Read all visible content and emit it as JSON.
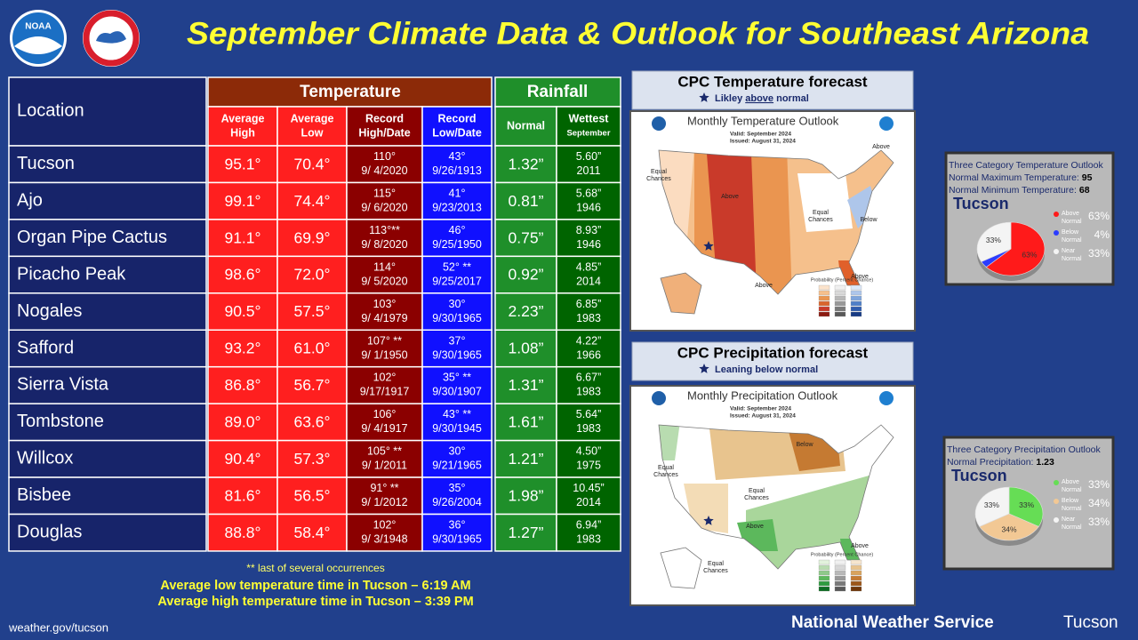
{
  "header": {
    "title": "September Climate Data & Outlook for Southeast Arizona",
    "logo": "NOAA"
  },
  "table": {
    "location_header": "Location",
    "groups": [
      "Temperature",
      "Rainfall"
    ],
    "columns": [
      [
        "Average",
        "High"
      ],
      [
        "Average",
        "Low"
      ],
      [
        "Record",
        "High/Date"
      ],
      [
        "Record",
        "Low/Date"
      ],
      [
        "Normal"
      ],
      [
        "Wettest",
        "September"
      ]
    ],
    "rows": [
      {
        "location": "Tucson",
        "avg_high": "95.1°",
        "avg_low": "70.4°",
        "record_high": [
          "110°",
          "9/ 4/2020"
        ],
        "record_low": [
          "43°",
          "9/26/1913"
        ],
        "normal": "1.32”",
        "wettest": [
          "5.60”",
          "2011"
        ]
      },
      {
        "location": "Ajo",
        "avg_high": "99.1°",
        "avg_low": "74.4°",
        "record_high": [
          "115°",
          "9/ 6/2020"
        ],
        "record_low": [
          "41°",
          "9/23/2013"
        ],
        "normal": "0.81”",
        "wettest": [
          "5.68”",
          "1946"
        ]
      },
      {
        "location": "Organ Pipe Cactus",
        "avg_high": "91.1°",
        "avg_low": "69.9°",
        "record_high": [
          "113°**",
          "9/ 8/2020"
        ],
        "record_low": [
          "46°",
          "9/25/1950"
        ],
        "normal": "0.75”",
        "wettest": [
          "8.93”",
          "1946"
        ]
      },
      {
        "location": "Picacho Peak",
        "avg_high": "98.6°",
        "avg_low": "72.0°",
        "record_high": [
          "114°",
          "9/ 5/2020"
        ],
        "record_low": [
          "52° **",
          "9/25/2017"
        ],
        "normal": "0.92”",
        "wettest": [
          "4.85”",
          "2014"
        ]
      },
      {
        "location": "Nogales",
        "avg_high": "90.5°",
        "avg_low": "57.5°",
        "record_high": [
          "103°",
          "9/ 4/1979"
        ],
        "record_low": [
          "30°",
          "9/30/1965"
        ],
        "normal": "2.23”",
        "wettest": [
          "6.85”",
          "1983"
        ]
      },
      {
        "location": "Safford",
        "avg_high": "93.2°",
        "avg_low": "61.0°",
        "record_high": [
          "107° **",
          "9/ 1/1950"
        ],
        "record_low": [
          "37°",
          "9/30/1965"
        ],
        "normal": "1.08”",
        "wettest": [
          "4.22”",
          "1966"
        ]
      },
      {
        "location": "Sierra Vista",
        "avg_high": "86.8°",
        "avg_low": "56.7°",
        "record_high": [
          "102°",
          "9/17/1917"
        ],
        "record_low": [
          "35° **",
          "9/30/1907"
        ],
        "normal": "1.31”",
        "wettest": [
          "6.67”",
          "1983"
        ]
      },
      {
        "location": "Tombstone",
        "avg_high": "89.0°",
        "avg_low": "63.6°",
        "record_high": [
          "106°",
          "9/ 4/1917"
        ],
        "record_low": [
          "43° **",
          "9/30/1945"
        ],
        "normal": "1.61”",
        "wettest": [
          "5.64”",
          "1983"
        ]
      },
      {
        "location": "Willcox",
        "avg_high": "90.4°",
        "avg_low": "57.3°",
        "record_high": [
          "105° **",
          "9/ 1/2011"
        ],
        "record_low": [
          "30°",
          "9/21/1965"
        ],
        "normal": "1.21”",
        "wettest": [
          "4.50”",
          "1975"
        ]
      },
      {
        "location": "Bisbee",
        "avg_high": "81.6°",
        "avg_low": "56.5°",
        "record_high": [
          "91° **",
          "9/ 1/2012"
        ],
        "record_low": [
          "35°",
          "9/26/2004"
        ],
        "normal": "1.98”",
        "wettest": [
          "10.45”",
          "2014"
        ]
      },
      {
        "location": "Douglas",
        "avg_high": "88.8°",
        "avg_low": "58.4°",
        "record_high": [
          "102°",
          "9/ 3/1948"
        ],
        "record_low": [
          "36°",
          "9/30/1965"
        ],
        "normal": "1.27”",
        "wettest": [
          "6.94”",
          "1983"
        ]
      }
    ]
  },
  "notes": [
    "** last of several occurrences",
    "Average low temperature time in Tucson – 6:19 AM",
    "Average high temperature time in Tucson – 3:39 PM"
  ],
  "footer": {
    "url": "weather.gov/tucson",
    "agency": "National Weather Service",
    "office": "Tucson"
  },
  "temperature_forecast": {
    "title": "CPC Temperature forecast",
    "subtitle": [
      "Likley ",
      "above",
      " normal"
    ],
    "map": {
      "title": "Monthly Temperature Outlook",
      "valid": "Valid:  September 2024",
      "issued": "Issued:  August 31, 2024",
      "legend": "Probability (Percent Chance)",
      "labels": [
        [
          "Above"
        ],
        [
          "Equal",
          "Chances"
        ],
        [
          "Above"
        ],
        [
          "Equal",
          "Chances"
        ],
        [
          "Below"
        ],
        [
          "Above"
        ],
        [
          "Above"
        ]
      ]
    }
  },
  "precipitation_forecast": {
    "title": "CPC Precipitation forecast",
    "subtitle": [
      "Leaning below normal"
    ],
    "map": {
      "title": "Monthly Precipitation Outlook",
      "valid": "Valid:  September 2024",
      "issued": "Issued:  August 31, 2024",
      "legend": "Probability (Percent Chance)",
      "labels": [
        [
          "Equal",
          "Chances"
        ],
        [
          "Below"
        ],
        [
          "Equal",
          "Chances"
        ],
        [
          "Above"
        ],
        [
          "Above"
        ],
        [
          "Equal",
          "Chances"
        ]
      ]
    }
  },
  "temperature_pie": {
    "title": "Three Category Temperature Outlook",
    "lines": [
      {
        "text": "Normal Maximum Temperature: ",
        "value": "95"
      },
      {
        "text": "Normal Minimum Temperature: ",
        "value": "68"
      }
    ],
    "location": "Tucson",
    "categories": [
      [
        "Above",
        "Normal"
      ],
      [
        "Below",
        "Normal"
      ],
      [
        "Near",
        "Normal"
      ]
    ],
    "values": [
      63,
      4,
      33
    ],
    "value_labels": [
      "63%",
      "4%",
      "33%"
    ],
    "colors": [
      "#ff1a1a",
      "#2b3cff",
      "#f4f4f4"
    ]
  },
  "precipitation_pie": {
    "title": "Three Category Precipitation Outlook",
    "lines": [
      {
        "text": "Normal Precipitation: ",
        "value": "1.23"
      }
    ],
    "location": "Tucson",
    "categories": [
      [
        "Above",
        "Normal"
      ],
      [
        "Below",
        "Normal"
      ],
      [
        "Near",
        "Normal"
      ]
    ],
    "values": [
      33,
      34,
      33
    ],
    "value_labels": [
      "33%",
      "34%",
      "33%"
    ],
    "colors": [
      "#66dd55",
      "#f2c894",
      "#f4f4f4"
    ]
  }
}
